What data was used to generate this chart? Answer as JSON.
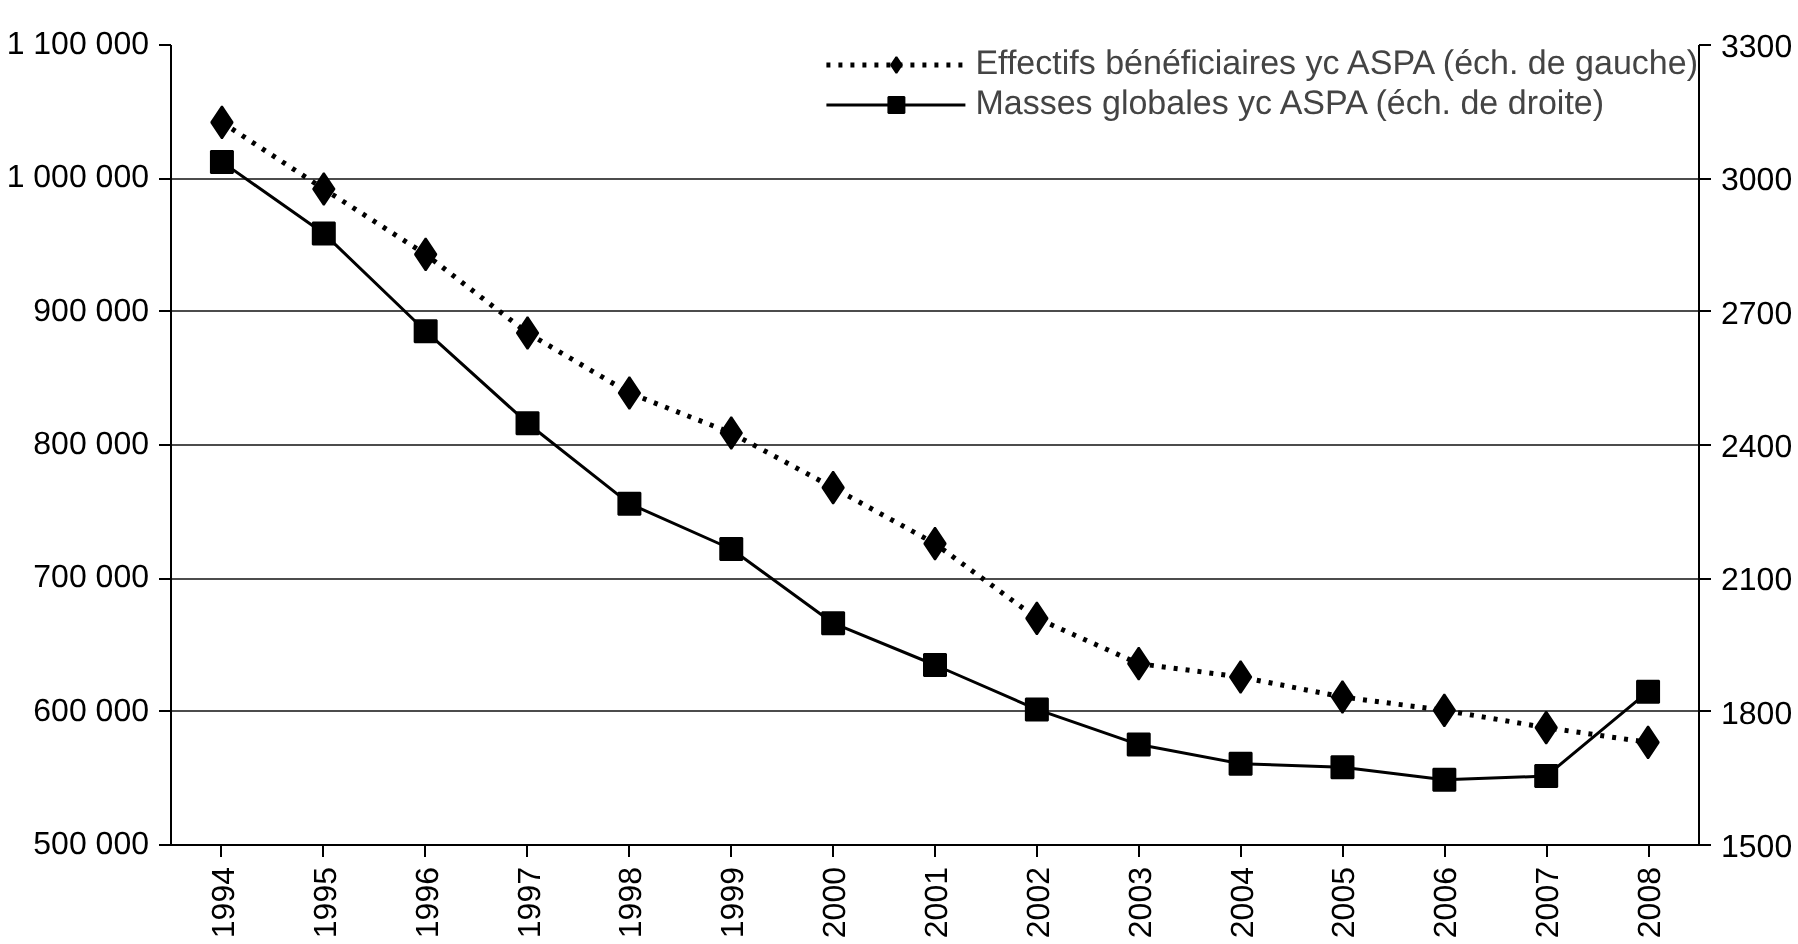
{
  "chart_data": {
    "type": "line",
    "categories": [
      "1994",
      "1995",
      "1996",
      "1997",
      "1998",
      "1999",
      "2000",
      "2001",
      "2002",
      "2003",
      "2004",
      "2005",
      "2006",
      "2007",
      "2008"
    ],
    "series": [
      {
        "name": "Effectifs bénéficiaires yc ASPA (éch. de gauche)",
        "color": "#000000",
        "marker": "diamond",
        "line_style": "dotted",
        "values": [
          1042000,
          992000,
          943000,
          884000,
          839000,
          809000,
          768000,
          726000,
          670000,
          636000,
          626000,
          611000,
          601000,
          588000,
          577000
        ]
      },
      {
        "name": "Masses globales yc ASPA (éch. de droite)",
        "color": "#000000",
        "marker": "square",
        "line_style": "solid",
        "axis": "y2",
        "values": [
          3037,
          2876,
          2656,
          2449,
          2268,
          2166,
          1999,
          1905,
          1805,
          1726,
          1683,
          1675,
          1647,
          1655,
          1845
        ]
      }
    ],
    "ylim": [
      500000,
      1100000
    ],
    "yticks": [
      {
        "value": 500000,
        "label": "500 000"
      },
      {
        "value": 600000,
        "label": "600 000"
      },
      {
        "value": 700000,
        "label": "700 000"
      },
      {
        "value": 800000,
        "label": "800 000"
      },
      {
        "value": 900000,
        "label": "900 000"
      },
      {
        "value": 1000000,
        "label": "1 000 000"
      },
      {
        "value": 1100000,
        "label": "1 100 000"
      }
    ],
    "y2lim": [
      1500,
      3300
    ],
    "y2ticks": [
      1500,
      1800,
      2100,
      2400,
      2700,
      3000,
      3300
    ],
    "grid": "y",
    "legend": "top right"
  }
}
